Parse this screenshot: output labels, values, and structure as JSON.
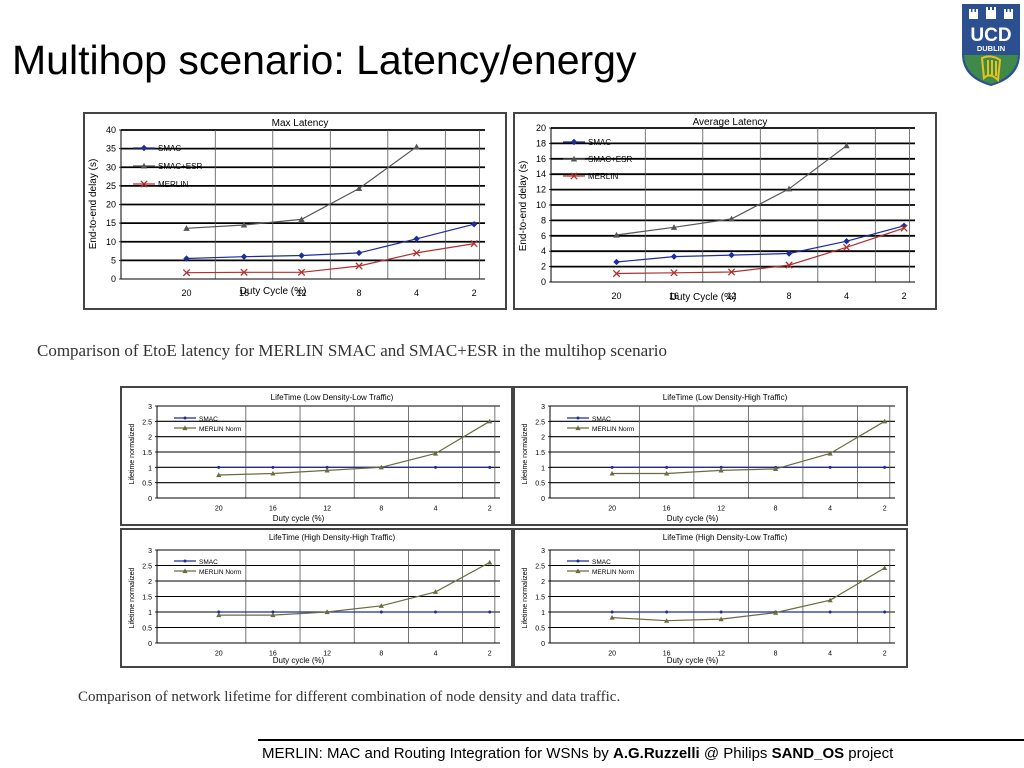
{
  "slide": {
    "title": "Multihop scenario: Latency/energy",
    "caption_top": "Comparison of EtoE latency for MERLIN SMAC and SMAC+ESR in the multihop scenario",
    "caption_bottom": "Comparison of network lifetime for different combination of node density and data traffic.",
    "footer": {
      "text1": "MERLIN: MAC and Routing Integration for WSNs by ",
      "author": "A.G.Ruzzelli",
      "text2": " @ Philips ",
      "project": "SAND_OS",
      "text3": " project"
    }
  },
  "logo": {
    "line1": "UCD",
    "line2": "DUBLIN",
    "colors": {
      "shield": "#2b4f8f",
      "band": "#ffffff",
      "lower": "#3f8a4a",
      "harp": "#e8c21a"
    }
  },
  "colors": {
    "smac": "#1c2c9c",
    "esr": "#555555",
    "merlin": "#b23030",
    "merlin_norm": "#6b6b3f"
  },
  "chart_data": [
    {
      "type": "line",
      "title": "Max Latency",
      "xlabel": "Duty Cycle (%)",
      "ylabel": "End-to-end delay (s)",
      "categories": [
        "20",
        "16",
        "12",
        "8",
        "4",
        "2"
      ],
      "ylim": [
        0,
        40
      ],
      "yticks": [
        0,
        5,
        10,
        15,
        20,
        25,
        30,
        35,
        40
      ],
      "legend": "top-left",
      "series": [
        {
          "name": "SMAC",
          "color_key": "smac",
          "marker": "diamond",
          "values": [
            5.5,
            6.0,
            6.3,
            7.0,
            10.8,
            14.7
          ]
        },
        {
          "name": "SMAC+ESR",
          "color_key": "esr",
          "marker": "triangle",
          "values": [
            13.6,
            14.5,
            16.0,
            24.3,
            35.5,
            null
          ]
        },
        {
          "name": "MERLIN",
          "color_key": "merlin",
          "marker": "x",
          "values": [
            1.7,
            1.8,
            1.8,
            3.5,
            7.0,
            9.5
          ]
        }
      ]
    },
    {
      "type": "line",
      "title": "Average Latency",
      "xlabel": "Duty Cycle (%)",
      "ylabel": "End-to-end delay (s)",
      "categories": [
        "20",
        "16",
        "12",
        "8",
        "4",
        "2"
      ],
      "ylim": [
        0,
        20
      ],
      "yticks": [
        0,
        2,
        4,
        6,
        8,
        10,
        12,
        14,
        16,
        18,
        20
      ],
      "legend": "top-left",
      "series": [
        {
          "name": "SMAC",
          "color_key": "smac",
          "marker": "diamond",
          "values": [
            2.6,
            3.3,
            3.5,
            3.7,
            5.3,
            7.3
          ]
        },
        {
          "name": "SMAC+ESR",
          "color_key": "esr",
          "marker": "triangle",
          "values": [
            6.1,
            7.1,
            8.2,
            12.1,
            17.7,
            null
          ]
        },
        {
          "name": "MERLIN",
          "color_key": "merlin",
          "marker": "x",
          "values": [
            1.1,
            1.2,
            1.3,
            2.2,
            4.5,
            7.0
          ]
        }
      ]
    },
    {
      "type": "line",
      "title": "LifeTime (Low Density-Low Traffic)",
      "xlabel": "Duty cycle (%)",
      "ylabel": "Lifetime normalized",
      "categories": [
        "20",
        "16",
        "12",
        "8",
        "4",
        "2"
      ],
      "ylim": [
        0,
        3
      ],
      "yticks": [
        0,
        0.5,
        1,
        1.5,
        2,
        2.5,
        3
      ],
      "legend": "top-left",
      "series": [
        {
          "name": "SMAC",
          "color_key": "smac",
          "marker": "dot",
          "values": [
            1,
            1,
            1,
            1,
            1,
            1
          ]
        },
        {
          "name": "MERLIN Norm",
          "color_key": "merlin_norm",
          "marker": "triangle",
          "values": [
            0.75,
            0.8,
            0.9,
            1.0,
            1.45,
            2.5
          ]
        }
      ]
    },
    {
      "type": "line",
      "title": "LifeTime (Low Density-High Traffic)",
      "xlabel": "Duty cycle (%)",
      "ylabel": "Lifetime normalized",
      "categories": [
        "20",
        "16",
        "12",
        "8",
        "4",
        "2"
      ],
      "ylim": [
        0,
        3
      ],
      "yticks": [
        0,
        0.5,
        1,
        1.5,
        2,
        2.5,
        3
      ],
      "legend": "top-left",
      "series": [
        {
          "name": "SMAC",
          "color_key": "smac",
          "marker": "dot",
          "values": [
            1,
            1,
            1,
            1,
            1,
            1
          ]
        },
        {
          "name": "MERLIN Norm",
          "color_key": "merlin_norm",
          "marker": "triangle",
          "values": [
            0.8,
            0.8,
            0.9,
            0.95,
            1.45,
            2.5
          ]
        }
      ]
    },
    {
      "type": "line",
      "title": "LifeTime (High Density-High Traffic)",
      "xlabel": "Duty cycle (%)",
      "ylabel": "Lifetime normalized",
      "categories": [
        "20",
        "16",
        "12",
        "8",
        "4",
        "2"
      ],
      "ylim": [
        0,
        3
      ],
      "yticks": [
        0,
        0.5,
        1,
        1.5,
        2,
        2.5,
        3
      ],
      "legend": "top-left",
      "series": [
        {
          "name": "SMAC",
          "color_key": "smac",
          "marker": "dot",
          "values": [
            1,
            1,
            1,
            1,
            1,
            1
          ]
        },
        {
          "name": "MERLIN Norm",
          "color_key": "merlin_norm",
          "marker": "triangle",
          "values": [
            0.9,
            0.9,
            1.0,
            1.2,
            1.65,
            2.6
          ]
        }
      ]
    },
    {
      "type": "line",
      "title": "LifeTime (High Density-Low Traffic)",
      "xlabel": "Duty cycle (%)",
      "ylabel": "Lifetime normalized",
      "categories": [
        "20",
        "16",
        "12",
        "8",
        "4",
        "2"
      ],
      "ylim": [
        0,
        3
      ],
      "yticks": [
        0,
        0.5,
        1,
        1.5,
        2,
        2.5,
        3
      ],
      "legend": "top-left",
      "series": [
        {
          "name": "SMAC",
          "color_key": "smac",
          "marker": "dot",
          "values": [
            1,
            1,
            1,
            1,
            1,
            1
          ]
        },
        {
          "name": "MERLIN Norm",
          "color_key": "merlin_norm",
          "marker": "triangle",
          "values": [
            0.82,
            0.72,
            0.77,
            0.98,
            1.38,
            2.42
          ]
        }
      ]
    }
  ]
}
